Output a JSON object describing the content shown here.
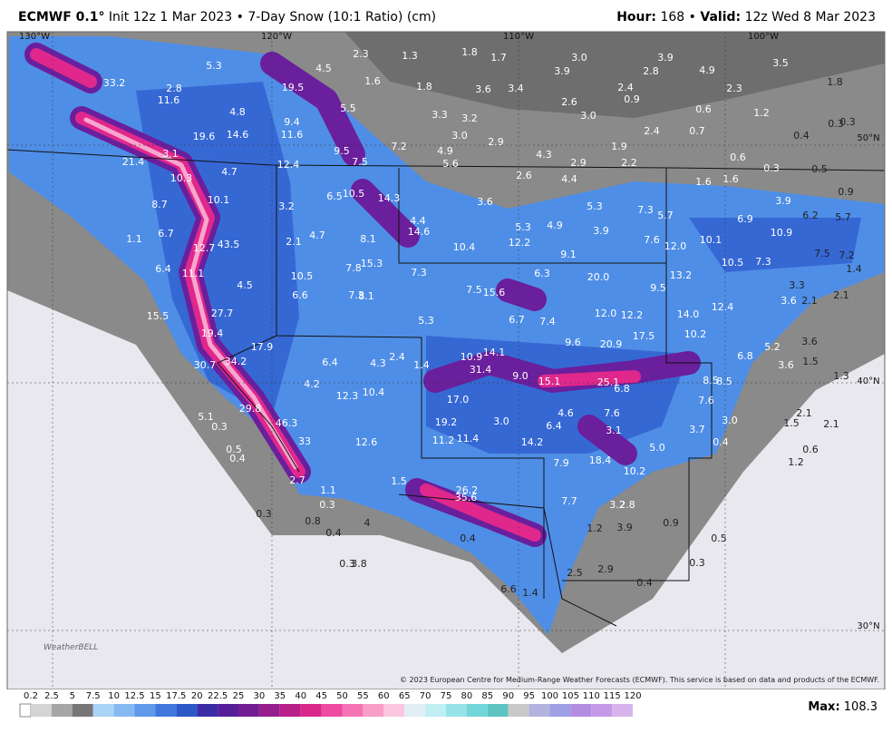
{
  "header": {
    "model": "ECMWF 0.1°",
    "title": "Init 12z 1 Mar 2023 • 7-Day Snow (10:1 Ratio) (cm)",
    "hour_label": "Hour:",
    "hour": "168",
    "separator": "•",
    "valid_label": "Valid:",
    "valid": "12z Wed 8 Mar 2023"
  },
  "map": {
    "grid_labels": [
      "130°W",
      "120°W",
      "110°W",
      "100°W",
      "50°N",
      "40°N",
      "30°N"
    ],
    "snow_labels": [
      "33.2",
      "2.8",
      "5.3",
      "4.8",
      "11.6",
      "19.6",
      "14.6",
      "21.4",
      "3.1",
      "10.3",
      "4.7",
      "10.1",
      "8.7",
      "1.1",
      "6.7",
      "12.7",
      "43.5",
      "11.1",
      "6.4",
      "4.5",
      "27.7",
      "15.5",
      "19.4",
      "30.7",
      "34.2",
      "17.9",
      "5.1",
      "0.3",
      "46.3",
      "33",
      "19.5",
      "4.5",
      "5.5",
      "9.4",
      "11.6",
      "12.4",
      "9.5",
      "7.5",
      "2.3",
      "1.3",
      "1.8",
      "1.7",
      "1.6",
      "1.8",
      "3.6",
      "3.4",
      "3.3",
      "3.2",
      "3.0",
      "2.9",
      "7.2",
      "4.9",
      "5.6",
      "4.3",
      "2.9",
      "3.0",
      "3.9",
      "2.6",
      "3.0",
      "2.4",
      "2.8",
      "0.9",
      "3.9",
      "4.9",
      "3.5",
      "1.8",
      "2.3",
      "0.6",
      "1.2",
      "0.4",
      "0.3",
      "0.3",
      "1.9",
      "2.2",
      "2.4",
      "0.7",
      "0.6",
      "0.3",
      "0.5",
      "0.9",
      "1.6",
      "1.6",
      "3.9",
      "6.2",
      "5.7",
      "6.9",
      "10.9",
      "10.1",
      "12.0",
      "10.5",
      "7.3",
      "7.5",
      "7.2",
      "1.4",
      "3.3",
      "3.6",
      "2.1",
      "2.1",
      "7.3",
      "5.7",
      "7.6",
      "5.3",
      "3.9",
      "4.4",
      "2.6",
      "3.6",
      "5.3",
      "12.2",
      "4.9",
      "9.1",
      "6.3",
      "20.0",
      "9.5",
      "13.2",
      "12.4",
      "14.0",
      "10.2",
      "12.0",
      "12.2",
      "17.5",
      "20.9",
      "9.6",
      "7.4",
      "6.7",
      "15.6",
      "7.5",
      "10.4",
      "7.3",
      "4.4",
      "14.3",
      "10.5",
      "6.5",
      "14.6",
      "8.1",
      "15.3",
      "7.8",
      "4.7",
      "2.1",
      "3.2",
      "10.5",
      "6.6",
      "7.3",
      "8.1",
      "5.3",
      "14.1",
      "10.9",
      "31.4",
      "9.0",
      "15.1",
      "25.1",
      "6.8",
      "8.5",
      "8.5",
      "7.6",
      "6.8",
      "5.2",
      "3.6",
      "3.6",
      "1.5",
      "1.3",
      "2.1",
      "1.5",
      "2.1",
      "3.0",
      "3.7",
      "0.4",
      "0.6",
      "1.2",
      "6.4",
      "4.3",
      "2.4",
      "1.4",
      "4.2",
      "12.3",
      "10.4",
      "17.0",
      "19.2",
      "11.2",
      "11.4",
      "3.0",
      "6.4",
      "4.6",
      "7.6",
      "3.1",
      "14.2",
      "18.4",
      "10.2",
      "5.0",
      "7.9",
      "12.6",
      "29.8",
      "0.4",
      "0.5",
      "2.7",
      "1.1",
      "0.3",
      "0.3",
      "0.8",
      "0.4",
      "4",
      "0.3",
      "3.8",
      "1.5",
      "26.2",
      "35.6",
      "7.7",
      "3.2",
      "2.8",
      "3.9",
      "1.2",
      "0.9",
      "0.5",
      "0.3",
      "2.5",
      "2.9",
      "0.4",
      "0.4",
      "6.6",
      "1.4"
    ],
    "logo": "WeatherBELL",
    "credit": "© 2023 European Centre for Medium-Range Weather Forecasts (ECMWF). This service is based on data and products of the ECMWF."
  },
  "legend": {
    "ticks": [
      0.2,
      2.5,
      5,
      7.5,
      10,
      12.5,
      15,
      17.5,
      20,
      22.5,
      25,
      30,
      35,
      40,
      45,
      50,
      55,
      60,
      65,
      70,
      75,
      80,
      85,
      90,
      95,
      100,
      105,
      110,
      115,
      120
    ],
    "colors": [
      "#d4d4d4",
      "#a6a6a6",
      "#767676",
      "#a9d3f7",
      "#86b9f2",
      "#6199ea",
      "#4178de",
      "#2c58c8",
      "#3b2ca6",
      "#561f9a",
      "#731d93",
      "#951d8d",
      "#b81f88",
      "#d8288b",
      "#ee4aa2",
      "#f572b5",
      "#f89ec9",
      "#fbc6df",
      "#e2eef6",
      "#bfeff2",
      "#96e4e8",
      "#72d6da",
      "#5ec3c3",
      "#c9c9c9",
      "#b3b3e0",
      "#9f9fe6",
      "#b48de0",
      "#c49ae6",
      "#d8b4ee"
    ],
    "max_label": "Max:",
    "max": 108.3
  }
}
